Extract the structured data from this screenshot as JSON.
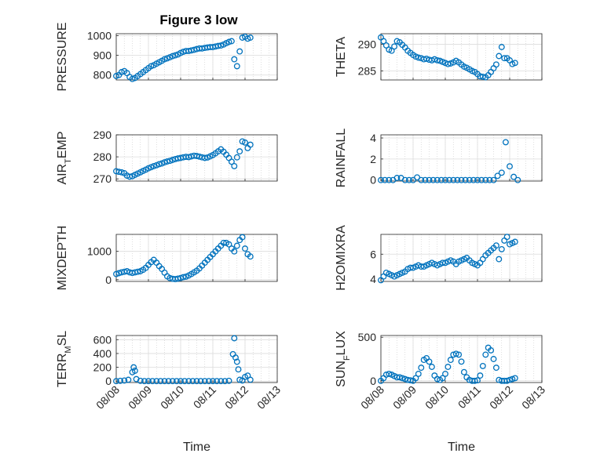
{
  "figure_title": "Figure 3 low",
  "chart_data": [
    {
      "type": "scatter",
      "title": "Figure 3 low",
      "ylabel": "PRESSURE",
      "ylabel_sub": "",
      "ylabel_tail": "",
      "xlabel": "",
      "xlim": [
        "08/08",
        "08/13"
      ],
      "ylim": [
        775,
        1010
      ],
      "yticks": [
        800,
        900,
        1000
      ],
      "xtick_labels": [],
      "grid": true,
      "marker": "open-circle",
      "color": "#0072BD",
      "x": [
        "08/08 00:00",
        "08/08 02:00",
        "08/08 04:00",
        "08/08 06:00",
        "08/08 08:00",
        "08/08 10:00",
        "08/08 12:00",
        "08/08 14:00",
        "08/08 16:00",
        "08/08 18:00",
        "08/08 20:00",
        "08/08 22:00",
        "08/09 00:00",
        "08/09 02:00",
        "08/09 04:00",
        "08/09 06:00",
        "08/09 08:00",
        "08/09 10:00",
        "08/09 12:00",
        "08/09 14:00",
        "08/09 16:00",
        "08/09 18:00",
        "08/09 20:00",
        "08/09 22:00",
        "08/10 00:00",
        "08/10 02:00",
        "08/10 04:00",
        "08/10 06:00",
        "08/10 08:00",
        "08/10 10:00",
        "08/10 12:00",
        "08/10 14:00",
        "08/10 16:00",
        "08/10 18:00",
        "08/10 20:00",
        "08/10 22:00",
        "08/11 00:00",
        "08/11 02:00",
        "08/11 04:00",
        "08/11 06:00",
        "08/11 08:00",
        "08/11 10:00",
        "08/11 12:00",
        "08/11 14:00",
        "08/11 16:00",
        "08/11 18:00",
        "08/11 20:00",
        "08/11 22:00",
        "08/12 00:00",
        "08/12 02:00",
        "08/12 04:00"
      ],
      "y": [
        795,
        800,
        815,
        820,
        810,
        790,
        780,
        785,
        795,
        805,
        815,
        825,
        835,
        845,
        850,
        858,
        865,
        872,
        880,
        885,
        890,
        896,
        900,
        905,
        912,
        918,
        922,
        922,
        925,
        928,
        932,
        935,
        935,
        938,
        940,
        942,
        942,
        945,
        948,
        950,
        955,
        962,
        968,
        972,
        880,
        845,
        920,
        990,
        995,
        985,
        990
      ]
    },
    {
      "type": "scatter",
      "title": "",
      "ylabel": "THETA",
      "ylabel_sub": "",
      "ylabel_tail": "",
      "xlabel": "",
      "xlim": [
        "08/08",
        "08/13"
      ],
      "ylim": [
        283.3,
        292
      ],
      "yticks": [
        285,
        290
      ],
      "xtick_labels": [],
      "grid": true,
      "marker": "open-circle",
      "color": "#0072BD",
      "x": [
        "08/08 00:00",
        "08/08 02:00",
        "08/08 04:00",
        "08/08 06:00",
        "08/08 08:00",
        "08/08 10:00",
        "08/08 12:00",
        "08/08 14:00",
        "08/08 16:00",
        "08/08 18:00",
        "08/08 20:00",
        "08/08 22:00",
        "08/09 00:00",
        "08/09 02:00",
        "08/09 04:00",
        "08/09 06:00",
        "08/09 08:00",
        "08/09 10:00",
        "08/09 12:00",
        "08/09 14:00",
        "08/09 16:00",
        "08/09 18:00",
        "08/09 20:00",
        "08/09 22:00",
        "08/10 00:00",
        "08/10 02:00",
        "08/10 04:00",
        "08/10 06:00",
        "08/10 08:00",
        "08/10 10:00",
        "08/10 12:00",
        "08/10 14:00",
        "08/10 16:00",
        "08/10 18:00",
        "08/10 20:00",
        "08/10 22:00",
        "08/11 00:00",
        "08/11 02:00",
        "08/11 04:00",
        "08/11 06:00",
        "08/11 08:00",
        "08/11 10:00",
        "08/11 12:00",
        "08/11 14:00",
        "08/11 16:00",
        "08/11 18:00",
        "08/11 20:00",
        "08/11 22:00",
        "08/12 00:00",
        "08/12 02:00",
        "08/12 04:00"
      ],
      "y": [
        291.3,
        290.6,
        289.8,
        289.0,
        288.8,
        289.6,
        290.6,
        290.4,
        289.9,
        289.4,
        288.8,
        288.4,
        288.0,
        287.7,
        287.5,
        287.4,
        287.2,
        287.3,
        287.1,
        287.0,
        287.2,
        287.0,
        286.9,
        286.7,
        286.5,
        286.3,
        286.4,
        286.6,
        286.9,
        286.6,
        286.2,
        285.8,
        285.6,
        285.3,
        285.0,
        284.8,
        284.4,
        284.0,
        283.9,
        283.8,
        284.2,
        284.8,
        285.5,
        286.2,
        287.8,
        289.5,
        287.4,
        287.4,
        287.0,
        286.3,
        286.5
      ]
    },
    {
      "type": "scatter",
      "title": "",
      "ylabel": "AIR",
      "ylabel_sub": "T",
      "ylabel_tail": "EMP",
      "xlabel": "",
      "xlim": [
        "08/08",
        "08/13"
      ],
      "ylim": [
        269,
        290
      ],
      "yticks": [
        270,
        280,
        290
      ],
      "xtick_labels": [],
      "grid": true,
      "marker": "open-circle",
      "color": "#0072BD",
      "x": [
        "08/08 00:00",
        "08/08 02:00",
        "08/08 04:00",
        "08/08 06:00",
        "08/08 08:00",
        "08/08 10:00",
        "08/08 12:00",
        "08/08 14:00",
        "08/08 16:00",
        "08/08 18:00",
        "08/08 20:00",
        "08/08 22:00",
        "08/09 00:00",
        "08/09 02:00",
        "08/09 04:00",
        "08/09 06:00",
        "08/09 08:00",
        "08/09 10:00",
        "08/09 12:00",
        "08/09 14:00",
        "08/09 16:00",
        "08/09 18:00",
        "08/09 20:00",
        "08/09 22:00",
        "08/10 00:00",
        "08/10 02:00",
        "08/10 04:00",
        "08/10 06:00",
        "08/10 08:00",
        "08/10 10:00",
        "08/10 12:00",
        "08/10 14:00",
        "08/10 16:00",
        "08/10 18:00",
        "08/10 20:00",
        "08/10 22:00",
        "08/11 00:00",
        "08/11 02:00",
        "08/11 04:00",
        "08/11 06:00",
        "08/11 08:00",
        "08/11 10:00",
        "08/11 12:00",
        "08/11 14:00",
        "08/11 16:00",
        "08/11 18:00",
        "08/11 20:00",
        "08/11 22:00",
        "08/12 00:00",
        "08/12 02:00",
        "08/12 04:00"
      ],
      "y": [
        273.5,
        273.2,
        273.0,
        272.6,
        271.5,
        271.0,
        271.2,
        271.8,
        272.4,
        273.0,
        273.6,
        274.2,
        274.8,
        275.3,
        275.8,
        276.2,
        276.7,
        277.0,
        277.5,
        277.9,
        278.2,
        278.6,
        279.0,
        279.3,
        279.5,
        279.8,
        280.0,
        279.9,
        280.2,
        280.5,
        280.4,
        280.1,
        279.8,
        279.5,
        279.7,
        280.2,
        280.8,
        281.6,
        282.5,
        283.4,
        282.3,
        281.0,
        279.5,
        277.8,
        275.8,
        279.8,
        282.5,
        287.0,
        286.5,
        284.0,
        285.5
      ]
    },
    {
      "type": "scatter",
      "title": "",
      "ylabel": "RAINFALL",
      "ylabel_sub": "",
      "ylabel_tail": "",
      "xlabel": "",
      "xlim": [
        "08/08",
        "08/13"
      ],
      "ylim": [
        -0.1,
        4.3
      ],
      "yticks": [
        0,
        2,
        4
      ],
      "xtick_labels": [],
      "grid": true,
      "marker": "open-circle",
      "color": "#0072BD",
      "x": [
        "08/08 00:00",
        "08/08 03:00",
        "08/08 06:00",
        "08/08 09:00",
        "08/08 12:00",
        "08/08 15:00",
        "08/08 18:00",
        "08/08 21:00",
        "08/09 00:00",
        "08/09 03:00",
        "08/09 06:00",
        "08/09 09:00",
        "08/09 12:00",
        "08/09 15:00",
        "08/09 18:00",
        "08/09 21:00",
        "08/10 00:00",
        "08/10 03:00",
        "08/10 06:00",
        "08/10 09:00",
        "08/10 12:00",
        "08/10 15:00",
        "08/10 18:00",
        "08/10 21:00",
        "08/11 00:00",
        "08/11 03:00",
        "08/11 06:00",
        "08/11 09:00",
        "08/11 12:00",
        "08/11 15:00",
        "08/11 18:00",
        "08/11 21:00",
        "08/12 00:00",
        "08/12 03:00",
        "08/12 06:00"
      ],
      "y": [
        0,
        0,
        0,
        0,
        0.2,
        0.2,
        0,
        0,
        0,
        0.25,
        0,
        0,
        0,
        0,
        0,
        0,
        0,
        0,
        0,
        0,
        0,
        0,
        0,
        0,
        0,
        0,
        0,
        0,
        0,
        0.4,
        0.7,
        3.6,
        1.3,
        0.3,
        0
      ]
    },
    {
      "type": "scatter",
      "title": "",
      "ylabel": "MIXDEPTH",
      "ylabel_sub": "",
      "ylabel_tail": "",
      "xlabel": "",
      "xlim": [
        "08/08",
        "08/13"
      ],
      "ylim": [
        -60,
        1600
      ],
      "yticks": [
        0,
        1000
      ],
      "xtick_labels": [],
      "grid": true,
      "marker": "open-circle",
      "color": "#0072BD",
      "x": [
        "08/08 00:00",
        "08/08 02:00",
        "08/08 04:00",
        "08/08 06:00",
        "08/08 08:00",
        "08/08 10:00",
        "08/08 12:00",
        "08/08 14:00",
        "08/08 16:00",
        "08/08 18:00",
        "08/08 20:00",
        "08/08 22:00",
        "08/09 00:00",
        "08/09 02:00",
        "08/09 04:00",
        "08/09 06:00",
        "08/09 08:00",
        "08/09 10:00",
        "08/09 12:00",
        "08/09 14:00",
        "08/09 16:00",
        "08/09 18:00",
        "08/09 20:00",
        "08/09 22:00",
        "08/10 00:00",
        "08/10 02:00",
        "08/10 04:00",
        "08/10 06:00",
        "08/10 08:00",
        "08/10 10:00",
        "08/10 12:00",
        "08/10 14:00",
        "08/10 16:00",
        "08/10 18:00",
        "08/10 20:00",
        "08/10 22:00",
        "08/11 00:00",
        "08/11 02:00",
        "08/11 04:00",
        "08/11 06:00",
        "08/11 08:00",
        "08/11 10:00",
        "08/11 12:00",
        "08/11 14:00",
        "08/11 16:00",
        "08/11 18:00",
        "08/11 20:00",
        "08/11 22:00",
        "08/12 00:00",
        "08/12 02:00",
        "08/12 04:00"
      ],
      "y": [
        200,
        230,
        260,
        280,
        300,
        260,
        240,
        260,
        280,
        300,
        350,
        420,
        520,
        620,
        700,
        600,
        480,
        380,
        250,
        120,
        60,
        30,
        20,
        40,
        60,
        90,
        110,
        150,
        200,
        260,
        320,
        400,
        500,
        600,
        700,
        800,
        900,
        1000,
        1100,
        1200,
        1300,
        1300,
        1250,
        1100,
        1000,
        1200,
        1400,
        1500,
        1100,
        900,
        820
      ]
    },
    {
      "type": "scatter",
      "title": "",
      "ylabel": "H2OMIXRA",
      "ylabel_sub": "",
      "ylabel_tail": "",
      "xlabel": "",
      "xlim": [
        "08/08",
        "08/13"
      ],
      "ylim": [
        3.8,
        7.6
      ],
      "yticks": [
        4,
        6
      ],
      "xtick_labels": [],
      "grid": true,
      "marker": "open-circle",
      "color": "#0072BD",
      "x": [
        "08/08 00:00",
        "08/08 02:00",
        "08/08 04:00",
        "08/08 06:00",
        "08/08 08:00",
        "08/08 10:00",
        "08/08 12:00",
        "08/08 14:00",
        "08/08 16:00",
        "08/08 18:00",
        "08/08 20:00",
        "08/08 22:00",
        "08/09 00:00",
        "08/09 02:00",
        "08/09 04:00",
        "08/09 06:00",
        "08/09 08:00",
        "08/09 10:00",
        "08/09 12:00",
        "08/09 14:00",
        "08/09 16:00",
        "08/09 18:00",
        "08/09 20:00",
        "08/09 22:00",
        "08/10 00:00",
        "08/10 02:00",
        "08/10 04:00",
        "08/10 06:00",
        "08/10 08:00",
        "08/10 10:00",
        "08/10 12:00",
        "08/10 14:00",
        "08/10 16:00",
        "08/10 18:00",
        "08/10 20:00",
        "08/10 22:00",
        "08/11 00:00",
        "08/11 02:00",
        "08/11 04:00",
        "08/11 06:00",
        "08/11 08:00",
        "08/11 10:00",
        "08/11 12:00",
        "08/11 14:00",
        "08/11 16:00",
        "08/11 18:00",
        "08/11 20:00",
        "08/11 22:00",
        "08/12 00:00",
        "08/12 02:00",
        "08/12 04:00"
      ],
      "y": [
        3.9,
        4.2,
        4.5,
        4.4,
        4.3,
        4.2,
        4.3,
        4.4,
        4.5,
        4.6,
        4.8,
        4.9,
        4.9,
        5.0,
        5.1,
        5.0,
        5.0,
        5.1,
        5.2,
        5.3,
        5.2,
        5.1,
        5.2,
        5.3,
        5.3,
        5.4,
        5.5,
        5.4,
        5.2,
        5.4,
        5.5,
        5.6,
        5.7,
        5.5,
        5.3,
        5.2,
        5.1,
        5.3,
        5.6,
        5.9,
        6.1,
        6.3,
        6.5,
        6.7,
        5.6,
        6.4,
        7.1,
        7.4,
        6.8,
        6.9,
        7.0
      ]
    },
    {
      "type": "scatter",
      "title": "",
      "ylabel": "TERR",
      "ylabel_sub": "M",
      "ylabel_tail": "SL",
      "xlabel": "Time",
      "xlim": [
        "08/08",
        "08/13"
      ],
      "ylim": [
        -20,
        660
      ],
      "yticks": [
        0,
        200,
        400,
        600
      ],
      "xtick_labels": [
        "08/08",
        "08/09",
        "08/10",
        "08/11",
        "08/12",
        "08/13"
      ],
      "grid": true,
      "marker": "open-circle",
      "color": "#0072BD",
      "x": [
        "08/08 00:00",
        "08/08 03:00",
        "08/08 06:00",
        "08/08 09:00",
        "08/08 12:00",
        "08/08 13:00",
        "08/08 14:00",
        "08/08 15:00",
        "08/08 18:00",
        "08/08 21:00",
        "08/09 00:00",
        "08/09 03:00",
        "08/09 06:00",
        "08/09 09:00",
        "08/09 12:00",
        "08/09 15:00",
        "08/09 18:00",
        "08/09 21:00",
        "08/10 00:00",
        "08/10 03:00",
        "08/10 06:00",
        "08/10 09:00",
        "08/10 12:00",
        "08/10 15:00",
        "08/10 18:00",
        "08/10 21:00",
        "08/11 00:00",
        "08/11 03:00",
        "08/11 06:00",
        "08/11 09:00",
        "08/11 12:00",
        "08/11 15:00",
        "08/11 16:00",
        "08/11 17:00",
        "08/11 18:00",
        "08/11 19:00",
        "08/11 20:00",
        "08/11 22:00",
        "08/12 00:00",
        "08/12 02:00",
        "08/12 04:00"
      ],
      "y": [
        0,
        5,
        10,
        20,
        130,
        200,
        150,
        30,
        5,
        0,
        0,
        0,
        0,
        0,
        0,
        0,
        0,
        0,
        0,
        0,
        0,
        0,
        0,
        0,
        0,
        0,
        0,
        0,
        0,
        0,
        5,
        390,
        620,
        340,
        280,
        170,
        20,
        10,
        60,
        80,
        20
      ]
    },
    {
      "type": "scatter",
      "title": "",
      "ylabel": "SUN",
      "ylabel_sub": "F",
      "ylabel_tail": "LUX",
      "xlabel": "Time",
      "xlim": [
        "08/08",
        "08/13"
      ],
      "ylim": [
        -20,
        520
      ],
      "yticks": [
        0,
        500
      ],
      "xtick_labels": [
        "08/08",
        "08/09",
        "08/10",
        "08/11",
        "08/12",
        "08/13"
      ],
      "grid": true,
      "marker": "open-circle",
      "color": "#0072BD",
      "x": [
        "08/08 00:00",
        "08/08 02:00",
        "08/08 04:00",
        "08/08 06:00",
        "08/08 08:00",
        "08/08 10:00",
        "08/08 12:00",
        "08/08 14:00",
        "08/08 16:00",
        "08/08 18:00",
        "08/08 20:00",
        "08/08 22:00",
        "08/09 00:00",
        "08/09 02:00",
        "08/09 04:00",
        "08/09 06:00",
        "08/09 08:00",
        "08/09 10:00",
        "08/09 12:00",
        "08/09 14:00",
        "08/09 16:00",
        "08/09 18:00",
        "08/09 20:00",
        "08/09 22:00",
        "08/10 00:00",
        "08/10 02:00",
        "08/10 04:00",
        "08/10 06:00",
        "08/10 08:00",
        "08/10 10:00",
        "08/10 12:00",
        "08/10 14:00",
        "08/10 16:00",
        "08/10 18:00",
        "08/10 20:00",
        "08/10 22:00",
        "08/11 00:00",
        "08/11 02:00",
        "08/11 04:00",
        "08/11 06:00",
        "08/11 08:00",
        "08/11 10:00",
        "08/11 12:00",
        "08/11 14:00",
        "08/11 16:00",
        "08/11 18:00",
        "08/11 20:00",
        "08/11 22:00",
        "08/12 00:00",
        "08/12 02:00",
        "08/12 04:00"
      ],
      "y": [
        0,
        30,
        70,
        80,
        70,
        55,
        40,
        40,
        30,
        20,
        10,
        5,
        0,
        30,
        80,
        150,
        240,
        260,
        220,
        160,
        60,
        20,
        10,
        30,
        80,
        160,
        240,
        300,
        310,
        300,
        220,
        100,
        40,
        10,
        0,
        0,
        5,
        60,
        170,
        300,
        380,
        350,
        250,
        150,
        10,
        0,
        0,
        0,
        10,
        20,
        30
      ]
    }
  ]
}
